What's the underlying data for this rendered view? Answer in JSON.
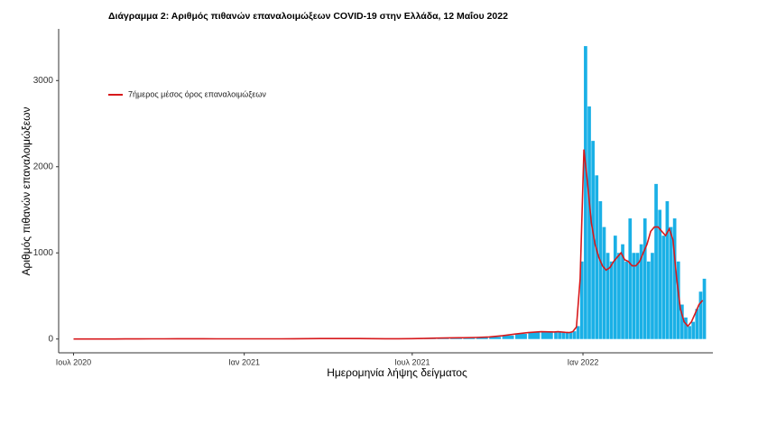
{
  "chart_data": {
    "type": "bar_line",
    "title": "Διάγραμμα 2: Αριθμός πιθανών επαναλοιμώξεων COVID-19 στην Ελλάδα, 12 Μαΐου 2022",
    "xlabel": "Ημερομηνία λήψης δείγματος",
    "ylabel": "Αριθμός πιθανών επαναλοιμώξεων",
    "x": [
      "2020-07-01",
      "2020-07-15",
      "2020-07-29",
      "2020-08-12",
      "2020-08-26",
      "2020-09-09",
      "2020-09-23",
      "2020-10-07",
      "2020-10-21",
      "2020-11-04",
      "2020-11-18",
      "2020-12-02",
      "2020-12-16",
      "2020-12-30",
      "2021-01-13",
      "2021-01-27",
      "2021-02-10",
      "2021-02-24",
      "2021-03-10",
      "2021-03-24",
      "2021-04-07",
      "2021-04-21",
      "2021-05-05",
      "2021-05-19",
      "2021-06-02",
      "2021-06-16",
      "2021-06-30",
      "2021-07-14",
      "2021-07-28",
      "2021-08-11",
      "2021-08-25",
      "2021-09-08",
      "2021-09-22",
      "2021-10-06",
      "2021-10-20",
      "2021-11-03",
      "2021-11-17",
      "2021-12-01",
      "2021-12-05",
      "2021-12-09",
      "2021-12-13",
      "2021-12-17",
      "2021-12-21",
      "2021-12-25",
      "2021-12-29",
      "2022-01-02",
      "2022-01-06",
      "2022-01-10",
      "2022-01-14",
      "2022-01-18",
      "2022-01-22",
      "2022-01-26",
      "2022-01-30",
      "2022-02-03",
      "2022-02-07",
      "2022-02-11",
      "2022-02-15",
      "2022-02-19",
      "2022-02-23",
      "2022-02-27",
      "2022-03-03",
      "2022-03-07",
      "2022-03-11",
      "2022-03-15",
      "2022-03-19",
      "2022-03-23",
      "2022-03-27",
      "2022-03-31",
      "2022-04-04",
      "2022-04-08",
      "2022-04-12",
      "2022-04-16",
      "2022-04-20",
      "2022-04-24",
      "2022-04-28",
      "2022-05-02",
      "2022-05-06",
      "2022-05-10"
    ],
    "series": [
      {
        "type": "bar",
        "color": "#1ab0e6",
        "values": [
          0,
          0,
          0,
          0,
          1,
          1,
          2,
          2,
          3,
          3,
          3,
          2,
          2,
          2,
          2,
          2,
          2,
          3,
          4,
          5,
          6,
          6,
          5,
          4,
          3,
          3,
          4,
          8,
          12,
          15,
          15,
          18,
          25,
          40,
          60,
          80,
          90,
          85,
          90,
          85,
          80,
          75,
          90,
          150,
          900,
          3400,
          2700,
          2300,
          1900,
          1600,
          1300,
          1000,
          900,
          1200,
          1000,
          1100,
          900,
          1400,
          1000,
          1000,
          1100,
          1400,
          900,
          1000,
          1800,
          1500,
          1200,
          1600,
          1300,
          1400,
          900,
          400,
          250,
          150,
          200,
          350,
          550,
          700
        ]
      },
      {
        "type": "line",
        "name": "7ήμερος μέσος όρος επαναλοιμώξεων",
        "color": "#d7191c",
        "values": [
          0,
          0,
          0,
          0,
          1,
          1,
          2,
          2,
          3,
          3,
          3,
          2,
          2,
          2,
          2,
          2,
          2,
          3,
          4,
          5,
          6,
          6,
          5,
          4,
          3,
          3,
          4,
          7,
          11,
          14,
          15,
          18,
          24,
          38,
          58,
          75,
          85,
          82,
          85,
          82,
          78,
          75,
          85,
          140,
          700,
          2200,
          1800,
          1350,
          1100,
          950,
          850,
          800,
          830,
          900,
          950,
          1000,
          920,
          900,
          850,
          850,
          900,
          1000,
          1100,
          1250,
          1300,
          1300,
          1250,
          1200,
          1280,
          1150,
          700,
          350,
          200,
          150,
          200,
          300,
          400,
          450
        ]
      }
    ],
    "xlim": [
      "2020-06-15",
      "2022-05-21"
    ],
    "xticks": [
      {
        "value": "2020-07-01",
        "label": "Ιουλ 2020"
      },
      {
        "value": "2021-01-01",
        "label": "Ιαν 2021"
      },
      {
        "value": "2021-07-01",
        "label": "Ιουλ 2021"
      },
      {
        "value": "2022-01-01",
        "label": "Ιαν 2022"
      }
    ],
    "ylim": [
      -160,
      3600
    ],
    "yticks": [
      0,
      1000,
      2000,
      3000
    ],
    "grid": false,
    "legend": "top-left"
  }
}
